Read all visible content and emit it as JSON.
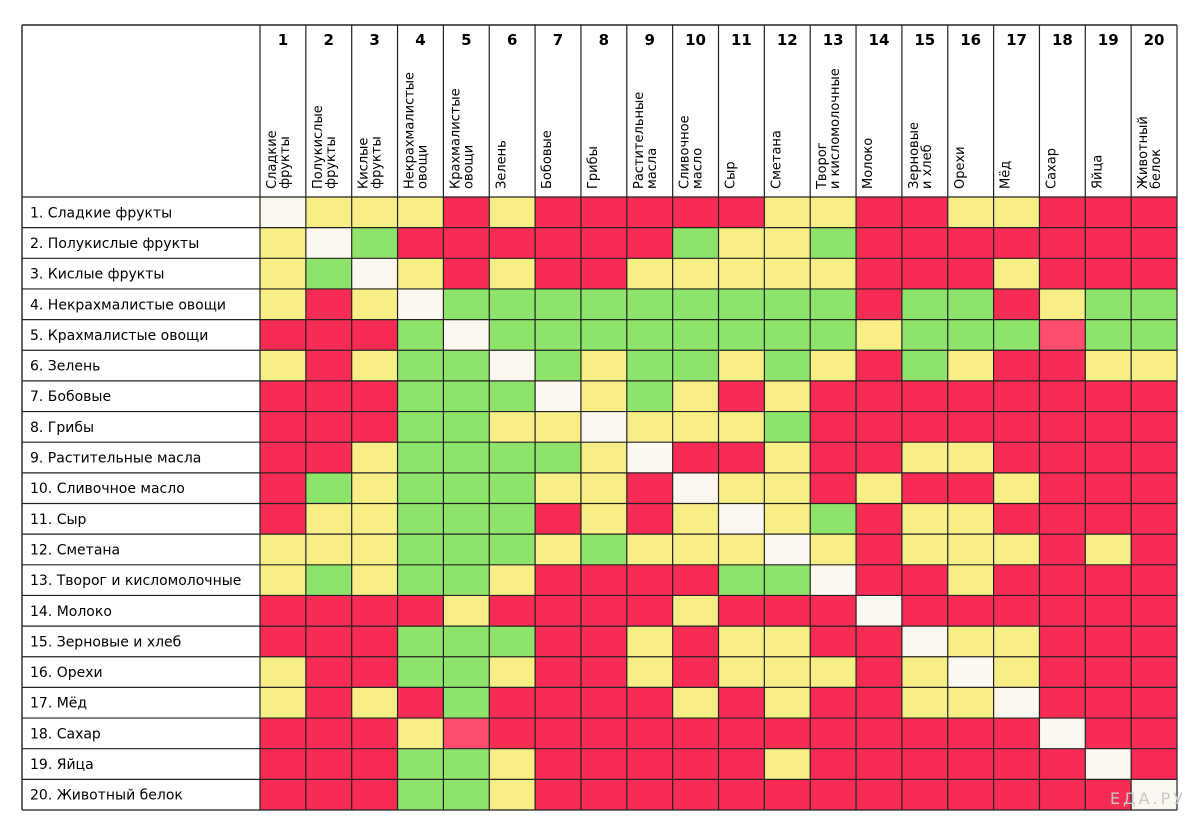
{
  "chart_data": {
    "type": "heatmap",
    "title": "",
    "columns": [
      {
        "number": "1",
        "label": [
          "Сладкие",
          "фрукты"
        ]
      },
      {
        "number": "2",
        "label": [
          "Полукислые",
          "фрукты"
        ]
      },
      {
        "number": "3",
        "label": [
          "Кислые",
          "фрукты"
        ]
      },
      {
        "number": "4",
        "label": [
          "Некрахмалистые",
          "овощи"
        ]
      },
      {
        "number": "5",
        "label": [
          "Крахмалистые",
          "овощи"
        ]
      },
      {
        "number": "6",
        "label": [
          "Зелень"
        ]
      },
      {
        "number": "7",
        "label": [
          "Бобовые"
        ]
      },
      {
        "number": "8",
        "label": [
          "Грибы"
        ]
      },
      {
        "number": "9",
        "label": [
          "Растительные",
          "масла"
        ]
      },
      {
        "number": "10",
        "label": [
          "Сливочное",
          "масло"
        ]
      },
      {
        "number": "11",
        "label": [
          "Сыр"
        ]
      },
      {
        "number": "12",
        "label": [
          "Сметана"
        ]
      },
      {
        "number": "13",
        "label": [
          "Творог",
          "и кисломолочные"
        ]
      },
      {
        "number": "14",
        "label": [
          "Молоко"
        ]
      },
      {
        "number": "15",
        "label": [
          "Зерновые",
          "и хлеб"
        ]
      },
      {
        "number": "16",
        "label": [
          "Орехи"
        ]
      },
      {
        "number": "17",
        "label": [
          "Мёд"
        ]
      },
      {
        "number": "18",
        "label": [
          "Сахар"
        ]
      },
      {
        "number": "19",
        "label": [
          "Яйца"
        ]
      },
      {
        "number": "20",
        "label": [
          "Животный",
          "белок"
        ]
      }
    ],
    "rows": [
      "1. Сладкие фрукты",
      "2. Полукислые фрукты",
      "3. Кислые фрукты",
      "4. Некрахмалистые овощи",
      "5. Крахмалистые овощи",
      "6. Зелень",
      "7. Бобовые",
      "8. Грибы",
      "9. Растительные масла",
      "10. Сливочное масло",
      "11. Сыр",
      "12. Сметана",
      "13. Творог и кисломолочные",
      "14. Молоко",
      "15. Зерновые и хлеб",
      "16. Орехи",
      "17. Мёд",
      "18. Сахар",
      "19. Яйца",
      "20. Животный белок"
    ],
    "legend_codes": {
      "G": "green",
      "Y": "yellow",
      "R": "red",
      "P": "pink",
      "W": "diagonal"
    },
    "colors": {
      "G": "#8ee46a",
      "Y": "#f7ef86",
      "R": "#f72c55",
      "P": "#ff4d6d",
      "W": "#fdf8ef",
      "grid": "#222222",
      "header_bg": "#ffffff"
    },
    "values": [
      "WYYYRYRRRRRYYRRYYRRR",
      "YWGRRRRRRGYYGRRRRRRR",
      "YGWYRYRRYYYYYRRRYRRR",
      "YRYWGGGGGGGGGRGGRYGG",
      "RRRGWGGGGGGGGYGGGPGG",
      "YRYGGWGYGGYGYRGYRRYY",
      "RRRGGGWYGYRYRRRRRRRR",
      "RRRGGYYWYYYGRRRRRRRR",
      "RRYGGGGYWRRYRRYYRRRR",
      "RGYGGGYYRWYYRYRRYRRR",
      "RYYGGGRYRYWYGRYYRRRR",
      "YYYGGGYGYYYWYRYYYRYR",
      "YGYGGYRRRRGGWRRYRRRR",
      "RRRRYRRRRYRRRWRRRRRR",
      "RRRGGGRRYRYYRRWYYRRR",
      "YRRGGYRRYRYYYRYWYRRR",
      "YRYRGRRRRYRYRRYYWRRR",
      "RRRYPRRRRRRRRRRRRWRR",
      "RRRGGYRRRRRYRRRRRRWR",
      "RRRGGYRRRRRRRRRRRRRW"
    ]
  },
  "watermark": "ЕДА.РУ"
}
